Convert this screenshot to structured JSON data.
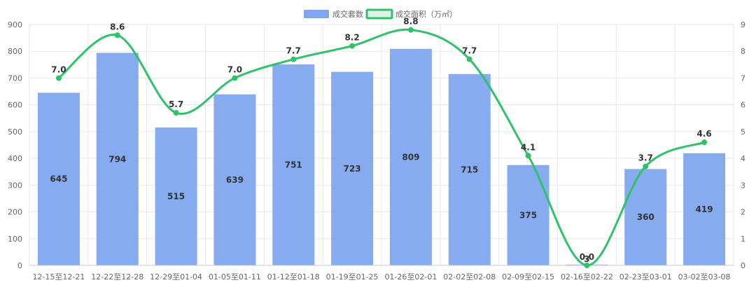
{
  "chart_data": {
    "type": "bar",
    "categories": [
      "12-15至12-21",
      "12-22至12-28",
      "12-29至01-04",
      "01-05至01-11",
      "01-12至01-18",
      "01-19至01-25",
      "01-26至02-01",
      "02-02至02-08",
      "02-09至02-15",
      "02-16至02-22",
      "02-23至03-01",
      "03-02至03-08"
    ],
    "series": [
      {
        "name": "成交套数",
        "type": "bar",
        "axis": "left",
        "values": [
          645,
          794,
          515,
          639,
          751,
          723,
          809,
          715,
          375,
          3,
          360,
          419
        ]
      },
      {
        "name": "成交面积（万㎡）",
        "type": "line",
        "axis": "right",
        "values": [
          7.0,
          8.6,
          5.7,
          7.0,
          7.7,
          8.2,
          8.8,
          7.7,
          4.1,
          0.0,
          3.7,
          4.6
        ]
      }
    ],
    "left_axis": {
      "min": 0,
      "max": 900,
      "step": 100
    },
    "right_axis": {
      "min": 0,
      "max": 9,
      "step": 1
    },
    "colors": {
      "bar": "#7fa6ee",
      "line": "#2fc26b",
      "grid": "#e8e8e8"
    },
    "legend": "top-center",
    "grid": true
  }
}
